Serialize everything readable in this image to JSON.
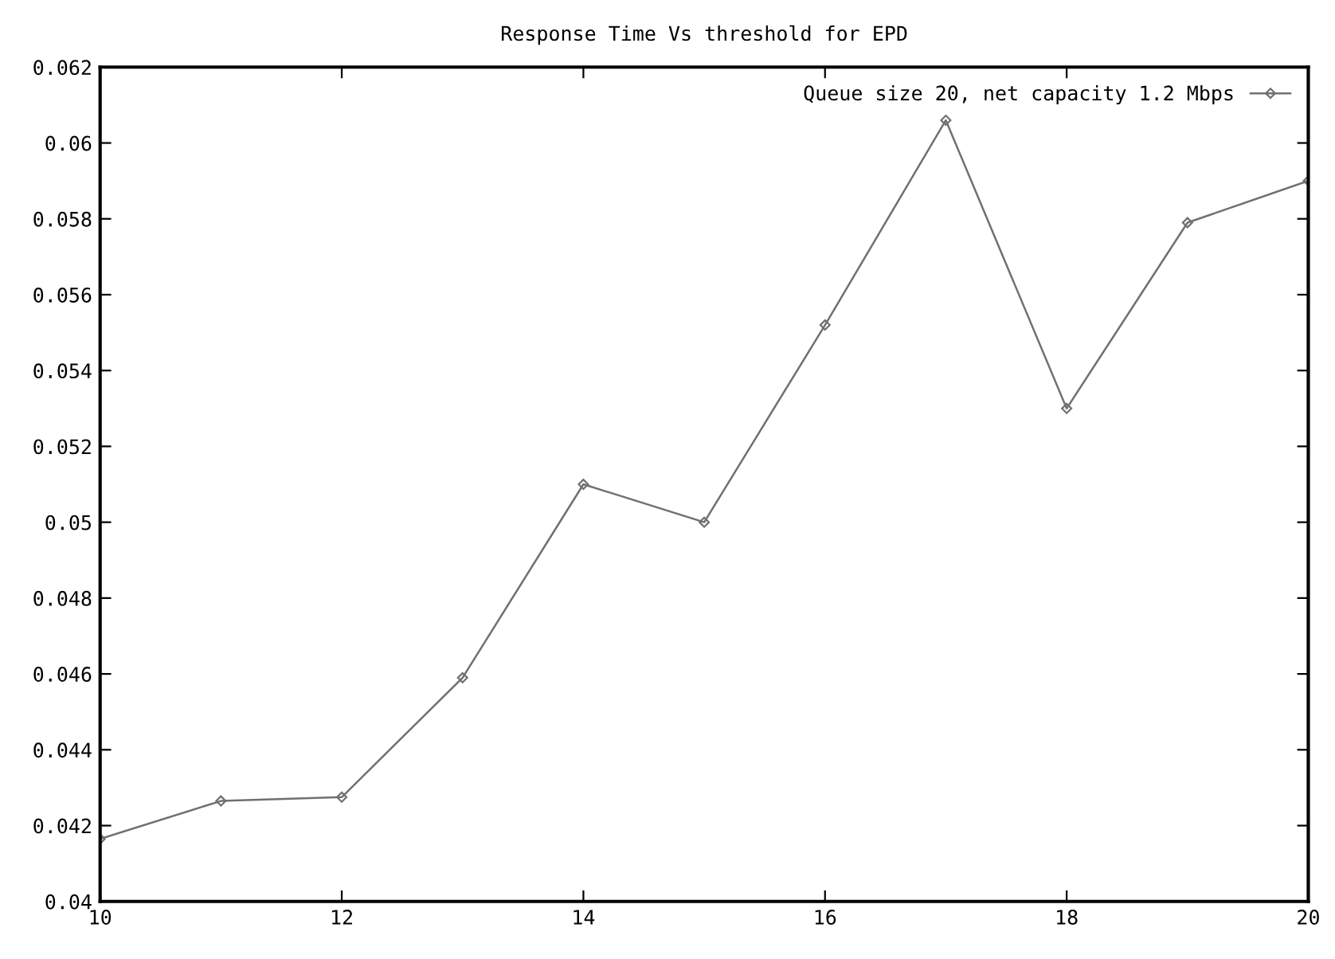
{
  "chart_data": {
    "type": "line",
    "title": "Response Time Vs threshold for EPD",
    "x": [
      10,
      11,
      12,
      13,
      14,
      15,
      16,
      17,
      18,
      19,
      20
    ],
    "series": [
      {
        "name": "Queue size 20, net capacity 1.2 Mbps",
        "color": "#707070",
        "values": [
          0.04165,
          0.04265,
          0.04275,
          0.0459,
          0.051,
          0.05,
          0.0552,
          0.0606,
          0.053,
          0.0579,
          0.059
        ]
      }
    ],
    "xlim": [
      10,
      20
    ],
    "xticks": [
      10,
      12,
      14,
      16,
      18,
      20
    ],
    "ylim": [
      0.04,
      0.062
    ],
    "yticks": [
      0.04,
      0.042,
      0.044,
      0.046,
      0.048,
      0.05,
      0.052,
      0.054,
      0.056,
      0.058,
      0.06,
      0.062
    ],
    "marker": "diamond",
    "legend": "top right",
    "grid": false
  }
}
